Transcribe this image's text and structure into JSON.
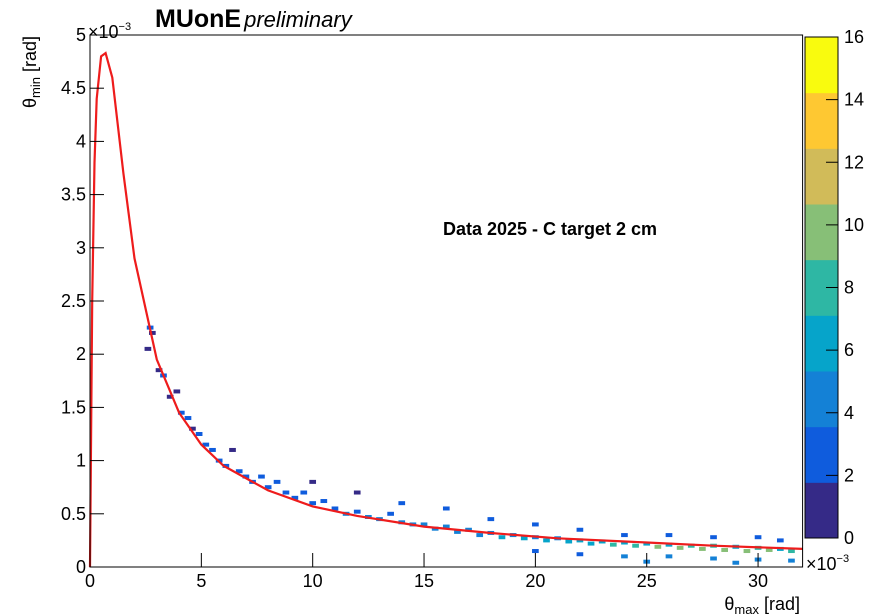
{
  "chart_data": {
    "type": "heatmap",
    "title": {
      "main": "MUonE",
      "tag": "preliminary"
    },
    "annotation": "Data 2025 - C target 2 cm",
    "xlabel": {
      "symbol": "θ",
      "subscript": "max",
      "unit": " [rad]"
    },
    "ylabel": {
      "symbol": "θ",
      "subscript": "min",
      "unit": " [rad]"
    },
    "x_exponent": {
      "base": "×10",
      "power": "−3"
    },
    "y_exponent": {
      "base": "×10",
      "power": "−3"
    },
    "xlim": [
      0,
      32
    ],
    "xticks": [
      0,
      5,
      10,
      15,
      20,
      25,
      30
    ],
    "ylim": [
      0,
      5
    ],
    "yticks": [
      0,
      0.5,
      1,
      1.5,
      2,
      2.5,
      3,
      3.5,
      4,
      4.5,
      5
    ],
    "zlim": [
      0,
      16
    ],
    "zticks": [
      0,
      2,
      4,
      6,
      8,
      10,
      12,
      14,
      16
    ],
    "colorscale": [
      "#352a87",
      "#0f5cdd",
      "#1481d6",
      "#06a4ca",
      "#2eb7a4",
      "#87bf77",
      "#d1bb59",
      "#fec832",
      "#f9fb0e"
    ],
    "cells": {
      "x": [
        2.6,
        2.7,
        2.8,
        3.1,
        3.3,
        3.6,
        3.9,
        4.1,
        4.4,
        4.6,
        4.9,
        5.2,
        5.5,
        5.8,
        6.1,
        6.4,
        6.7,
        7.0,
        7.3,
        7.7,
        8.0,
        8.4,
        8.8,
        9.2,
        9.6,
        10,
        10.5,
        11,
        11.5,
        12,
        12.5,
        13,
        13.5,
        14,
        14.5,
        15,
        15.5,
        16,
        16.5,
        17,
        17.5,
        18,
        18.5,
        19,
        19.5,
        20,
        20.5,
        21,
        21.5,
        22,
        22.5,
        23,
        23.5,
        24,
        24.5,
        25,
        25.5,
        26,
        26.5,
        27,
        27.5,
        28,
        28.5,
        29,
        29.5,
        30,
        30.5,
        31,
        31.5,
        10,
        12,
        14,
        16,
        18,
        20,
        22,
        24,
        26,
        28,
        30,
        31,
        20,
        22,
        24,
        26,
        28,
        30,
        31.5,
        25,
        29
      ],
      "y": [
        2.05,
        2.25,
        2.2,
        1.85,
        1.8,
        1.6,
        1.65,
        1.45,
        1.4,
        1.3,
        1.25,
        1.15,
        1.1,
        1.0,
        0.95,
        1.1,
        0.9,
        0.85,
        0.8,
        0.85,
        0.75,
        0.8,
        0.7,
        0.65,
        0.7,
        0.6,
        0.62,
        0.55,
        0.5,
        0.52,
        0.47,
        0.45,
        0.5,
        0.42,
        0.4,
        0.4,
        0.36,
        0.38,
        0.33,
        0.35,
        0.3,
        0.32,
        0.28,
        0.3,
        0.27,
        0.28,
        0.25,
        0.27,
        0.24,
        0.25,
        0.22,
        0.24,
        0.21,
        0.23,
        0.2,
        0.22,
        0.19,
        0.21,
        0.18,
        0.2,
        0.17,
        0.2,
        0.16,
        0.19,
        0.15,
        0.18,
        0.16,
        0.17,
        0.15,
        0.8,
        0.7,
        0.6,
        0.55,
        0.45,
        0.4,
        0.35,
        0.3,
        0.3,
        0.28,
        0.28,
        0.25,
        0.15,
        0.12,
        0.1,
        0.1,
        0.08,
        0.07,
        0.06,
        0.05,
        0.04
      ],
      "values": [
        1,
        2,
        1,
        1,
        2,
        1,
        1,
        2,
        2,
        1,
        2,
        2,
        2,
        3,
        2,
        1,
        3,
        2,
        3,
        2,
        3,
        2,
        3,
        3,
        2,
        3,
        3,
        3,
        4,
        3,
        4,
        4,
        3,
        4,
        4,
        5,
        4,
        4,
        5,
        4,
        5,
        5,
        6,
        4,
        6,
        5,
        6,
        5,
        7,
        6,
        7,
        6,
        8,
        6,
        8,
        7,
        9,
        7,
        9,
        8,
        10,
        8,
        9,
        7,
        10,
        8,
        9,
        7,
        8,
        1,
        1,
        2,
        2,
        2,
        2,
        2,
        3,
        3,
        3,
        3,
        3,
        3,
        3,
        4,
        4,
        4,
        5,
        5,
        5,
        5
      ]
    },
    "curve": {
      "color": "#ee1c1c",
      "x": [
        0,
        0.1,
        0.2,
        0.3,
        0.5,
        0.7,
        1,
        1.5,
        2,
        3,
        4,
        5,
        6,
        8,
        10,
        12,
        15,
        18,
        21,
        25,
        28,
        32
      ],
      "y": [
        0,
        2.5,
        3.8,
        4.4,
        4.8,
        4.83,
        4.6,
        3.7,
        2.9,
        1.95,
        1.45,
        1.15,
        0.95,
        0.72,
        0.57,
        0.48,
        0.38,
        0.32,
        0.27,
        0.23,
        0.2,
        0.17
      ]
    }
  }
}
